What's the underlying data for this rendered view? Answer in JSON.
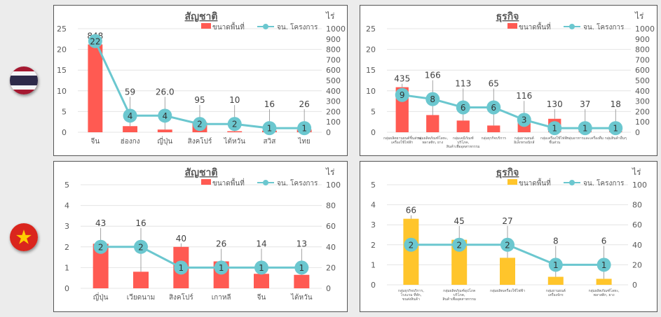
{
  "flags": [
    {
      "country": "thailand",
      "icon": "thailand-flag-icon",
      "colors": [
        "#a51931",
        "#f4f5f8",
        "#2d2a4a"
      ]
    },
    {
      "country": "vietnam",
      "icon": "vietnam-flag-icon",
      "colors": [
        "#da251d",
        "#ffcd00"
      ]
    }
  ],
  "chart_data": [
    {
      "type": "bar",
      "title": "สัญชาติ",
      "legend": {
        "bar": "ขนาดพื้นที่",
        "line": "จน. โครงการ",
        "placement": "top-right"
      },
      "y2_unit": "ไร่",
      "bar_color": "#ff5a52",
      "line_color": "#6bc7cf",
      "categories": [
        "จีน",
        "ฮ่องกง",
        "ญี่ปุ่น",
        "สิงคโปร์",
        "ไต้หวัน",
        "สวิส",
        "ไทย"
      ],
      "series": [
        {
          "name": "ขนาดพื้นที่",
          "axis": "right",
          "values": [
            848,
            59,
            26,
            95,
            10,
            16,
            26
          ],
          "labels": [
            "848",
            "59",
            "26.0",
            "95",
            "10",
            "16",
            "26"
          ]
        },
        {
          "name": "จน. โครงการ",
          "axis": "left",
          "values": [
            22,
            4,
            4,
            2,
            2,
            1,
            1
          ]
        }
      ],
      "ylim": [
        0,
        25
      ],
      "y_ticks": [
        0,
        5,
        10,
        15,
        20,
        25
      ],
      "y2lim": [
        0,
        1000
      ],
      "y2_ticks": [
        0,
        100,
        200,
        300,
        400,
        500,
        600,
        700,
        800,
        900,
        1000
      ],
      "grid": true
    },
    {
      "type": "bar",
      "title": "ธุรกิจ",
      "legend": {
        "bar": "ขนาดพื้นที่",
        "line": "จน. โครงการ",
        "placement": "top-right"
      },
      "y2_unit": "ไร่",
      "bar_color": "#ff5a52",
      "line_color": "#6bc7cf",
      "categories": [
        "กลุ่มผลิตยานยนต์ชิ้นส่วน เครื่องใช้ไฟฟ้า",
        "กลุ่มผลิตภัณฑ์โลหะ, พลาสติก, ยาง",
        "กลุ่มเคมีภัณฑ์ บริโภค, สินค้าเพื่ออุตสาหกรรม",
        "กลุ่มธุรกิจบริการ",
        "กลุ่มยานยนต์ อิเล็กทรอนิกส์",
        "กลุ่มเครื่องใช้ไฟฟ้า ชิ้นส่วน",
        "กลุ่มอาหารและเครื่องดื่ม",
        "กลุ่มสินค้าอื่นๆ"
      ],
      "series": [
        {
          "name": "ขนาดพื้นที่",
          "axis": "right",
          "values": [
            435,
            166,
            113,
            65,
            116,
            130,
            37,
            18
          ],
          "labels": [
            "435",
            "166",
            "113",
            "65",
            "116",
            "130",
            "37",
            "18"
          ]
        },
        {
          "name": "จน. โครงการ",
          "axis": "left",
          "values": [
            9,
            8,
            6,
            6,
            3,
            1,
            1,
            1
          ]
        }
      ],
      "ylim": [
        0,
        25
      ],
      "y_ticks": [
        0,
        5,
        10,
        15,
        20,
        25
      ],
      "y2lim": [
        0,
        1000
      ],
      "y2_ticks": [
        0,
        100,
        200,
        300,
        400,
        500,
        600,
        700,
        800,
        900,
        1000
      ],
      "grid": true
    },
    {
      "type": "bar",
      "title": "สัญชาติ",
      "legend": {
        "bar": "ขนาดพื้นที่",
        "line": "จน. โครงการ",
        "placement": "top-right"
      },
      "y2_unit": "ไร่",
      "bar_color": "#ff5a52",
      "line_color": "#6bc7cf",
      "categories": [
        "ญี่ปุ่น",
        "เวียดนาม",
        "สิงคโปร์",
        "เกาหลี",
        "จีน",
        "ไต้หวัน"
      ],
      "series": [
        {
          "name": "ขนาดพื้นที่",
          "axis": "right",
          "values": [
            43,
            16,
            40,
            26,
            14,
            13
          ],
          "labels": [
            "43",
            "16",
            "40",
            "26",
            "14",
            "13"
          ]
        },
        {
          "name": "จน. โครงการ",
          "axis": "left",
          "values": [
            2,
            2,
            1,
            1,
            1,
            1
          ]
        }
      ],
      "ylim": [
        0,
        5
      ],
      "y_ticks": [
        0,
        1,
        2,
        3,
        4,
        5
      ],
      "y2lim": [
        0,
        100
      ],
      "y2_ticks": [
        0,
        20,
        40,
        60,
        80,
        100
      ],
      "grid": true
    },
    {
      "type": "bar",
      "title": "ธุรกิจ",
      "legend": {
        "bar": "ขนาดพื้นที่",
        "line": "จน. โครงการ",
        "placement": "top-right"
      },
      "y2_unit": "ไร่",
      "bar_color": "#ffc52b",
      "line_color": "#6bc7cf",
      "categories": [
        "กลุ่มธุรกิจบริการ, โรงแรม ที่พัก, ขนส่งสินค้า",
        "กลุ่มผลิตภัณฑ์อุปโภค บริโภค, สินค้าเพื่ออุตสาหกรรม",
        "กลุ่มผลิตเครื่องใช้ไฟฟ้า",
        "กลุ่มยานยนต์ เครื่องจักร",
        "กลุ่มผลิตภัณฑ์โลหะ, พลาสติก, ยาง"
      ],
      "series": [
        {
          "name": "ขนาดพื้นที่",
          "axis": "right",
          "values": [
            66,
            45,
            27,
            8,
            6
          ],
          "labels": [
            "66",
            "45",
            "27",
            "8",
            "6"
          ]
        },
        {
          "name": "จน. โครงการ",
          "axis": "left",
          "values": [
            2,
            2,
            2,
            1,
            1
          ]
        }
      ],
      "ylim": [
        0,
        5
      ],
      "y_ticks": [
        0,
        1,
        2,
        3,
        4,
        5
      ],
      "y2lim": [
        0,
        100
      ],
      "y2_ticks": [
        0,
        20,
        40,
        60,
        80,
        100
      ],
      "grid": true
    }
  ]
}
